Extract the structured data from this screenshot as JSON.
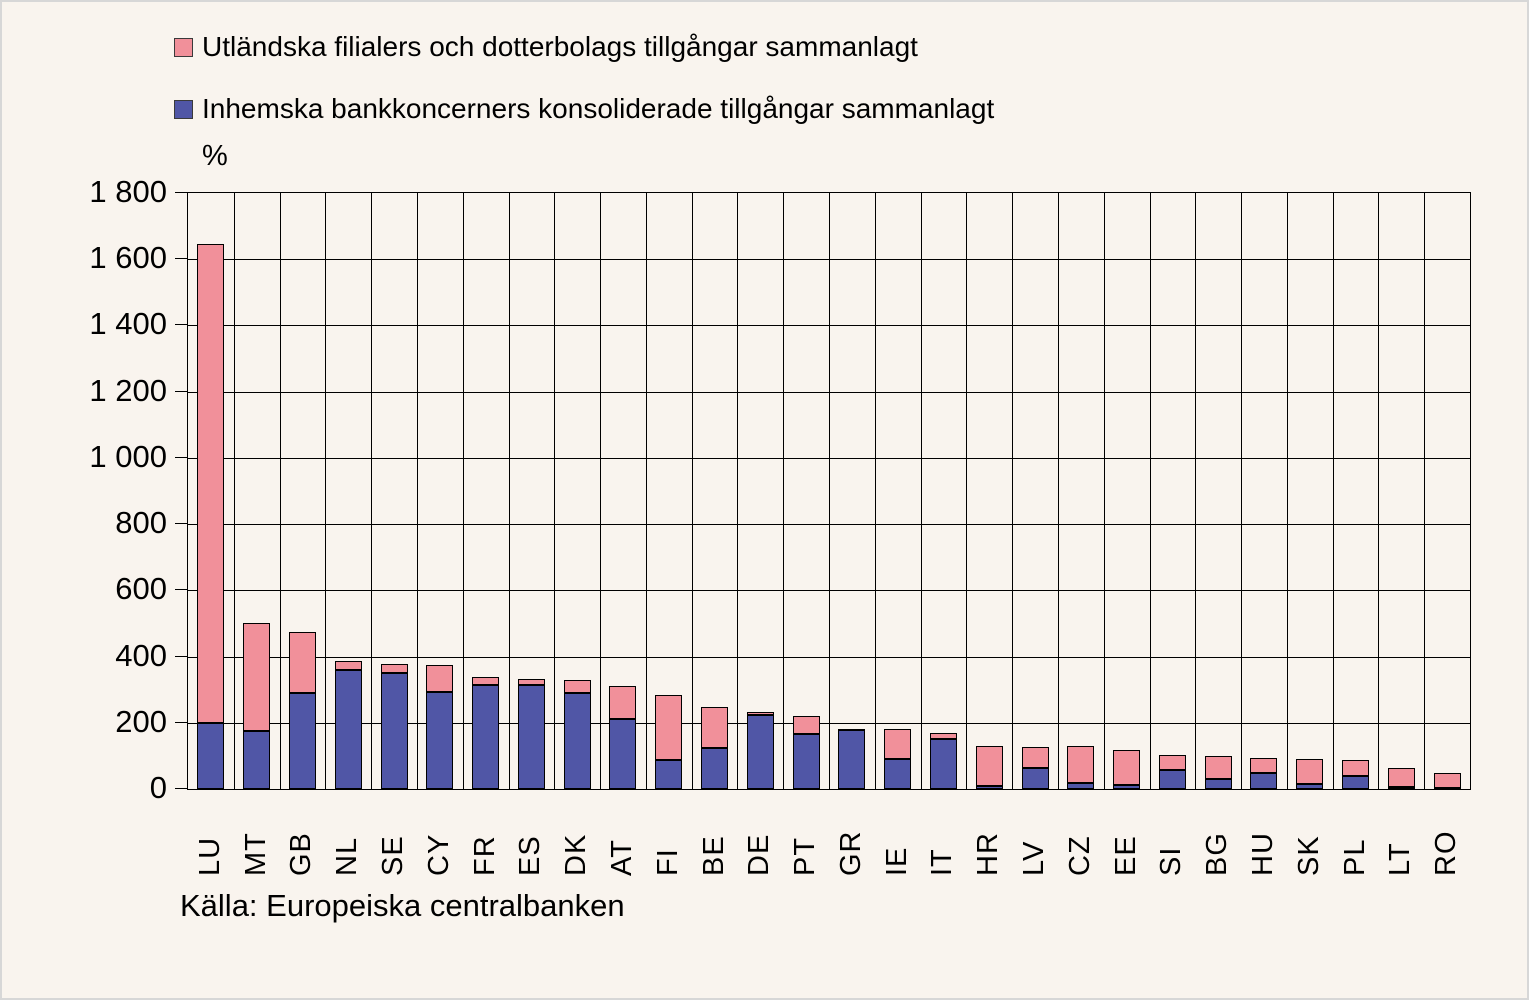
{
  "legend": {
    "items": [
      {
        "label": "Utländska filialers och dotterbolags tillgångar sammanlagt",
        "color": "#f1909a"
      },
      {
        "label": "Inhemska bankkoncerners konsoliderade tillgångar sammanlagt",
        "color": "#5056a6"
      }
    ],
    "unit_label": "%"
  },
  "source": "Källa: Europeiska centralbanken",
  "colors": {
    "background": "#f9f4ee",
    "foreign_pink": "#f1909a",
    "domestic_blue": "#5056a6",
    "grid": "#000000",
    "frame": "#d7d7d7"
  },
  "chart_data": {
    "type": "bar",
    "stacked": true,
    "title": "",
    "ylabel": "%",
    "xlabel": "",
    "ylim": [
      0,
      1800
    ],
    "ytick_step": 200,
    "grid": true,
    "legend_position": "top-left",
    "categories": [
      "LU",
      "MT",
      "GB",
      "NL",
      "SE",
      "CY",
      "FR",
      "ES",
      "DK",
      "AT",
      "FI",
      "BE",
      "DE",
      "PT",
      "GR",
      "IE",
      "IT",
      "HR",
      "LV",
      "CZ",
      "EE",
      "SI",
      "BG",
      "HU",
      "SK",
      "PL",
      "LT",
      "RO"
    ],
    "series": [
      {
        "name": "Inhemska bankkoncerners konsoliderade tillgångar sammanlagt",
        "color": "#5056a6",
        "values": [
          200,
          175,
          290,
          358,
          350,
          292,
          315,
          315,
          290,
          210,
          87,
          125,
          222,
          167,
          178,
          92,
          150,
          9,
          63,
          18,
          12,
          58,
          30,
          47,
          14,
          40,
          6,
          4
        ]
      },
      {
        "name": "Utländska filialers och dotterbolags tillgångar sammanlagt",
        "color": "#f1909a",
        "values": [
          1445,
          325,
          185,
          30,
          28,
          81,
          22,
          18,
          40,
          102,
          198,
          123,
          10,
          53,
          4,
          88,
          18,
          121,
          65,
          112,
          106,
          46,
          69,
          46,
          76,
          49,
          57,
          44
        ]
      }
    ],
    "totals": [
      1645,
      500,
      475,
      388,
      378,
      373,
      337,
      333,
      330,
      312,
      285,
      248,
      232,
      220,
      182,
      180,
      168,
      130,
      128,
      130,
      118,
      104,
      99,
      93,
      90,
      89,
      63,
      48
    ]
  }
}
